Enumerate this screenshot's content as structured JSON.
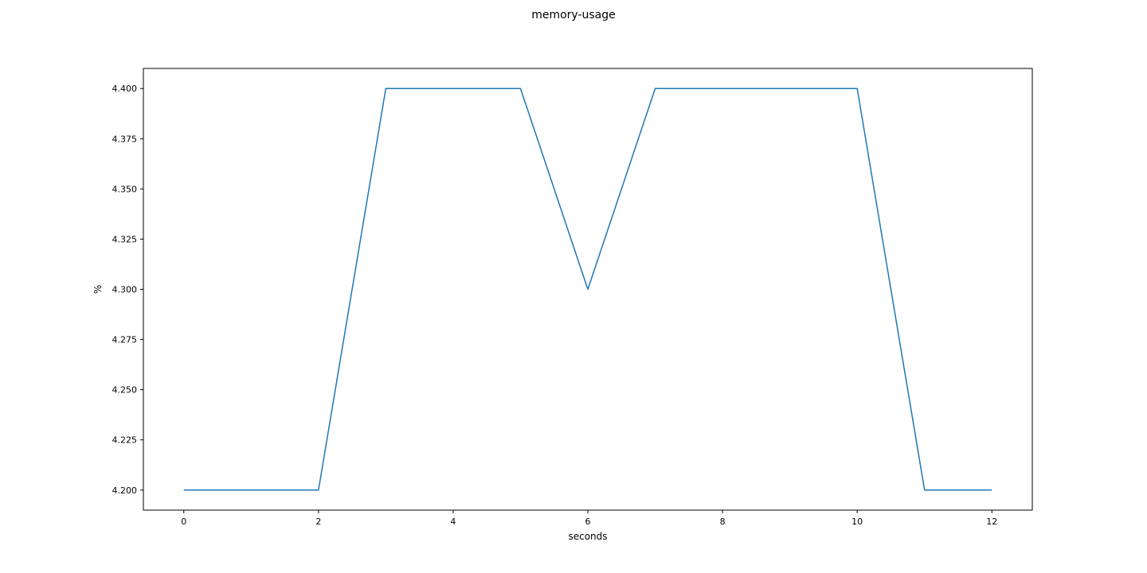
{
  "chart_data": {
    "type": "line",
    "title": "memory-usage",
    "xlabel": "seconds",
    "ylabel": "%",
    "xlim": [
      -0.6,
      12.6
    ],
    "ylim": [
      4.19,
      4.41
    ],
    "xticks": [
      0,
      2,
      4,
      6,
      8,
      10,
      12
    ],
    "xtick_labels": [
      "0",
      "2",
      "4",
      "6",
      "8",
      "10",
      "12"
    ],
    "yticks": [
      4.2,
      4.225,
      4.25,
      4.275,
      4.3,
      4.325,
      4.35,
      4.375,
      4.4
    ],
    "ytick_labels": [
      "4.200",
      "4.225",
      "4.250",
      "4.275",
      "4.300",
      "4.325",
      "4.350",
      "4.375",
      "4.400"
    ],
    "grid": false,
    "series": [
      {
        "x": [
          0,
          1,
          2,
          3,
          4,
          5,
          6,
          7,
          8,
          9,
          10,
          11,
          12
        ],
        "values": [
          4.2,
          4.2,
          4.2,
          4.4,
          4.4,
          4.4,
          4.3,
          4.4,
          4.4,
          4.4,
          4.4,
          4.2,
          4.2
        ],
        "color": "#1f77b4"
      }
    ]
  }
}
